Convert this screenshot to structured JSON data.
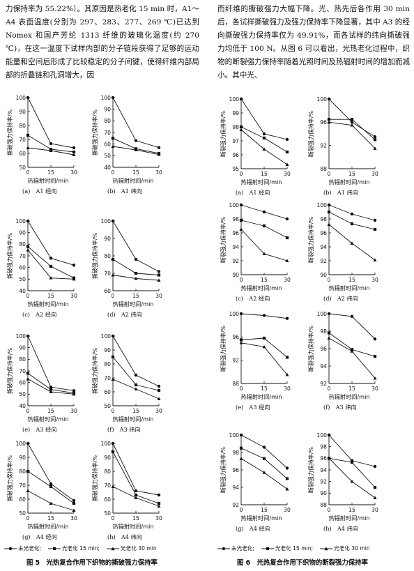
{
  "left_text": "力保持率为 55.22%）。其原因是热老化 15 min 时，A1～A4 表面温度(分别为 297、283、277、269 ℃)已达到 Nomex 和国产芳纶 1313 纤维的玻璃化温度(约 270 ℃)，在这一温度下试样内部的分子链段获得了足够的运动能量和空间后形成了比较稳定的分子间键，使得纤维内部局部的折叠链和孔洞增大，因",
  "right_text": "而纤维的撕破强力大幅下降。光、热先后各作用 30 min 后，各试样撕破强力及强力保持率下降显著，其中 A3 的经向撕破强力保持率仅为 49.91%，而各试样的纬向撕破强力均低于 100 N。从图 6 可以看出，光热老化过程中，织物的断裂强力保持率随着光照时间及热辐射时间的增加而减小。其中光、",
  "xlabel": "热辐射时间/min",
  "legend": {
    "s1": "未光老化;",
    "s2": "光老化 15 min;",
    "s3": "光老化 30 min"
  },
  "figure5": {
    "title": "图 5　光热复合作用下织物的撕破强力保持率",
    "ylabel": "撕破强力保持率/%"
  },
  "figure6": {
    "title": "图 6　光热复合作用下织物的断裂强力保持率",
    "ylabel": "断裂强力保持率/%"
  },
  "chart_data": [
    {
      "figure": 5,
      "type": "line",
      "caption": "(a)　A1 经向",
      "x": [
        0,
        15,
        30
      ],
      "ylim": [
        50,
        100
      ],
      "yticks": [
        50,
        60,
        70,
        80,
        90,
        100
      ],
      "series": [
        {
          "values": [
            100,
            67,
            64
          ]
        },
        {
          "values": [
            73,
            63,
            61
          ]
        },
        {
          "values": [
            64,
            62,
            59
          ]
        }
      ]
    },
    {
      "figure": 5,
      "type": "line",
      "caption": "(b)　A1 纬向",
      "x": [
        0,
        15,
        30
      ],
      "ylim": [
        40,
        100
      ],
      "yticks": [
        40,
        50,
        60,
        70,
        80,
        90,
        100
      ],
      "series": [
        {
          "values": [
            100,
            63,
            57
          ]
        },
        {
          "values": [
            65,
            56,
            52
          ]
        },
        {
          "values": [
            58,
            55,
            51
          ]
        }
      ]
    },
    {
      "figure": 5,
      "type": "line",
      "caption": "(c)　A2 经向",
      "x": [
        0,
        15,
        30
      ],
      "ylim": [
        40,
        100
      ],
      "yticks": [
        40,
        50,
        60,
        70,
        80,
        90,
        100
      ],
      "series": [
        {
          "values": [
            100,
            68,
            62
          ]
        },
        {
          "values": [
            78,
            61,
            51
          ]
        },
        {
          "values": [
            75,
            51,
            50
          ]
        }
      ]
    },
    {
      "figure": 5,
      "type": "line",
      "caption": "(d)　A2 纬向",
      "x": [
        0,
        15,
        30
      ],
      "ylim": [
        60,
        100
      ],
      "yticks": [
        60,
        70,
        80,
        90,
        100
      ],
      "series": [
        {
          "values": [
            100,
            78,
            71
          ]
        },
        {
          "values": [
            78,
            70,
            69
          ]
        },
        {
          "values": [
            69,
            67,
            66
          ]
        }
      ]
    },
    {
      "figure": 5,
      "type": "line",
      "caption": "(e)　A3 经向",
      "x": [
        0,
        15,
        30
      ],
      "ylim": [
        40,
        100
      ],
      "yticks": [
        40,
        50,
        60,
        70,
        80,
        90,
        100
      ],
      "series": [
        {
          "values": [
            100,
            56,
            53
          ]
        },
        {
          "values": [
            68,
            54,
            51
          ]
        },
        {
          "values": [
            63,
            52,
            50
          ]
        }
      ]
    },
    {
      "figure": 5,
      "type": "line",
      "caption": "(f)　A3 纬向",
      "x": [
        0,
        15,
        30
      ],
      "ylim": [
        50,
        100
      ],
      "yticks": [
        50,
        60,
        70,
        80,
        90,
        100
      ],
      "series": [
        {
          "values": [
            100,
            72,
            64
          ]
        },
        {
          "values": [
            85,
            65,
            61
          ]
        },
        {
          "values": [
            69,
            62,
            55
          ]
        }
      ]
    },
    {
      "figure": 5,
      "type": "line",
      "caption": "(g)　A4 经向",
      "x": [
        0,
        15,
        30
      ],
      "ylim": [
        50,
        100
      ],
      "yticks": [
        50,
        60,
        70,
        80,
        90,
        100
      ],
      "series": [
        {
          "values": [
            100,
            71,
            59
          ]
        },
        {
          "values": [
            80,
            69,
            57
          ]
        },
        {
          "values": [
            66,
            57,
            52
          ]
        }
      ]
    },
    {
      "figure": 5,
      "type": "line",
      "caption": "(h)　A4 纬向",
      "x": [
        0,
        15,
        30
      ],
      "ylim": [
        50,
        100
      ],
      "yticks": [
        50,
        60,
        70,
        80,
        90,
        100
      ],
      "series": [
        {
          "values": [
            100,
            66,
            63
          ]
        },
        {
          "values": [
            94,
            63,
            57
          ]
        },
        {
          "values": [
            69,
            61,
            55
          ]
        }
      ]
    },
    {
      "figure": 6,
      "type": "line",
      "caption": "(a)　A1 经向",
      "x": [
        0,
        15,
        30
      ],
      "ylim": [
        95,
        100
      ],
      "yticks": [
        95,
        96,
        97,
        98,
        99,
        100
      ],
      "series": [
        {
          "values": [
            100,
            97.5,
            97.1
          ]
        },
        {
          "values": [
            98,
            97.2,
            96.2
          ]
        },
        {
          "values": [
            97.8,
            96.4,
            95.3
          ]
        }
      ]
    },
    {
      "figure": 6,
      "type": "line",
      "caption": "(b)　A1 纬向",
      "x": [
        0,
        15,
        30
      ],
      "ylim": [
        88,
        100
      ],
      "yticks": [
        88,
        92,
        96,
        100
      ],
      "series": [
        {
          "values": [
            100,
            96,
            93.5
          ]
        },
        {
          "values": [
            96.5,
            96.5,
            93
          ]
        },
        {
          "values": [
            96,
            95.5,
            91.5
          ]
        }
      ]
    },
    {
      "figure": 6,
      "type": "line",
      "caption": "(c)　A2 经向",
      "x": [
        0,
        15,
        30
      ],
      "ylim": [
        90,
        100
      ],
      "yticks": [
        90,
        92,
        94,
        96,
        98,
        100
      ],
      "series": [
        {
          "values": [
            100,
            99,
            98
          ]
        },
        {
          "values": [
            97.8,
            97,
            95.3
          ]
        },
        {
          "values": [
            96.5,
            93,
            92
          ]
        }
      ]
    },
    {
      "figure": 6,
      "type": "line",
      "caption": "(d)　A2 纬向",
      "x": [
        0,
        15,
        30
      ],
      "ylim": [
        90,
        100
      ],
      "yticks": [
        90,
        92,
        94,
        96,
        98,
        100
      ],
      "series": [
        {
          "values": [
            100,
            98.7,
            97.8
          ]
        },
        {
          "values": [
            99,
            97.3,
            96.5
          ]
        },
        {
          "values": [
            97.2,
            94.5,
            92.1
          ]
        }
      ]
    },
    {
      "figure": 6,
      "type": "line",
      "caption": "(e)　A3 经向",
      "x": [
        0,
        15,
        30
      ],
      "ylim": [
        88,
        100
      ],
      "yticks": [
        88,
        92,
        96,
        100
      ],
      "series": [
        {
          "values": [
            100,
            99.7,
            99.2
          ]
        },
        {
          "values": [
            95.5,
            95.8,
            92.5
          ]
        },
        {
          "values": [
            95,
            94.3,
            89.5
          ]
        }
      ]
    },
    {
      "figure": 6,
      "type": "line",
      "caption": "(f)　A3 纬向",
      "x": [
        0,
        15,
        30
      ],
      "ylim": [
        92,
        100
      ],
      "yticks": [
        92,
        94,
        96,
        98,
        100
      ],
      "series": [
        {
          "values": [
            100,
            99.7,
            97.1
          ]
        },
        {
          "values": [
            97.8,
            95.9,
            95.1
          ]
        },
        {
          "values": [
            97.2,
            95.7,
            92.6
          ]
        }
      ]
    },
    {
      "figure": 6,
      "type": "line",
      "caption": "(g)　A4 经向",
      "x": [
        0,
        15,
        30
      ],
      "ylim": [
        92,
        100
      ],
      "yticks": [
        92,
        94,
        96,
        98,
        100
      ],
      "series": [
        {
          "values": [
            100,
            98.6,
            96.2
          ]
        },
        {
          "values": [
            98.5,
            97.3,
            95
          ]
        },
        {
          "values": [
            97.3,
            95.7,
            93.8
          ]
        }
      ]
    },
    {
      "figure": 6,
      "type": "line",
      "caption": "(h)　A4 纬向",
      "x": [
        0,
        15,
        30
      ],
      "ylim": [
        88,
        100
      ],
      "yticks": [
        88,
        90,
        92,
        94,
        96,
        98,
        100
      ],
      "series": [
        {
          "values": [
            100,
            95.6,
            94.6
          ]
        },
        {
          "values": [
            96,
            95.3,
            91
          ]
        },
        {
          "values": [
            96,
            92,
            89.2
          ]
        }
      ]
    }
  ]
}
